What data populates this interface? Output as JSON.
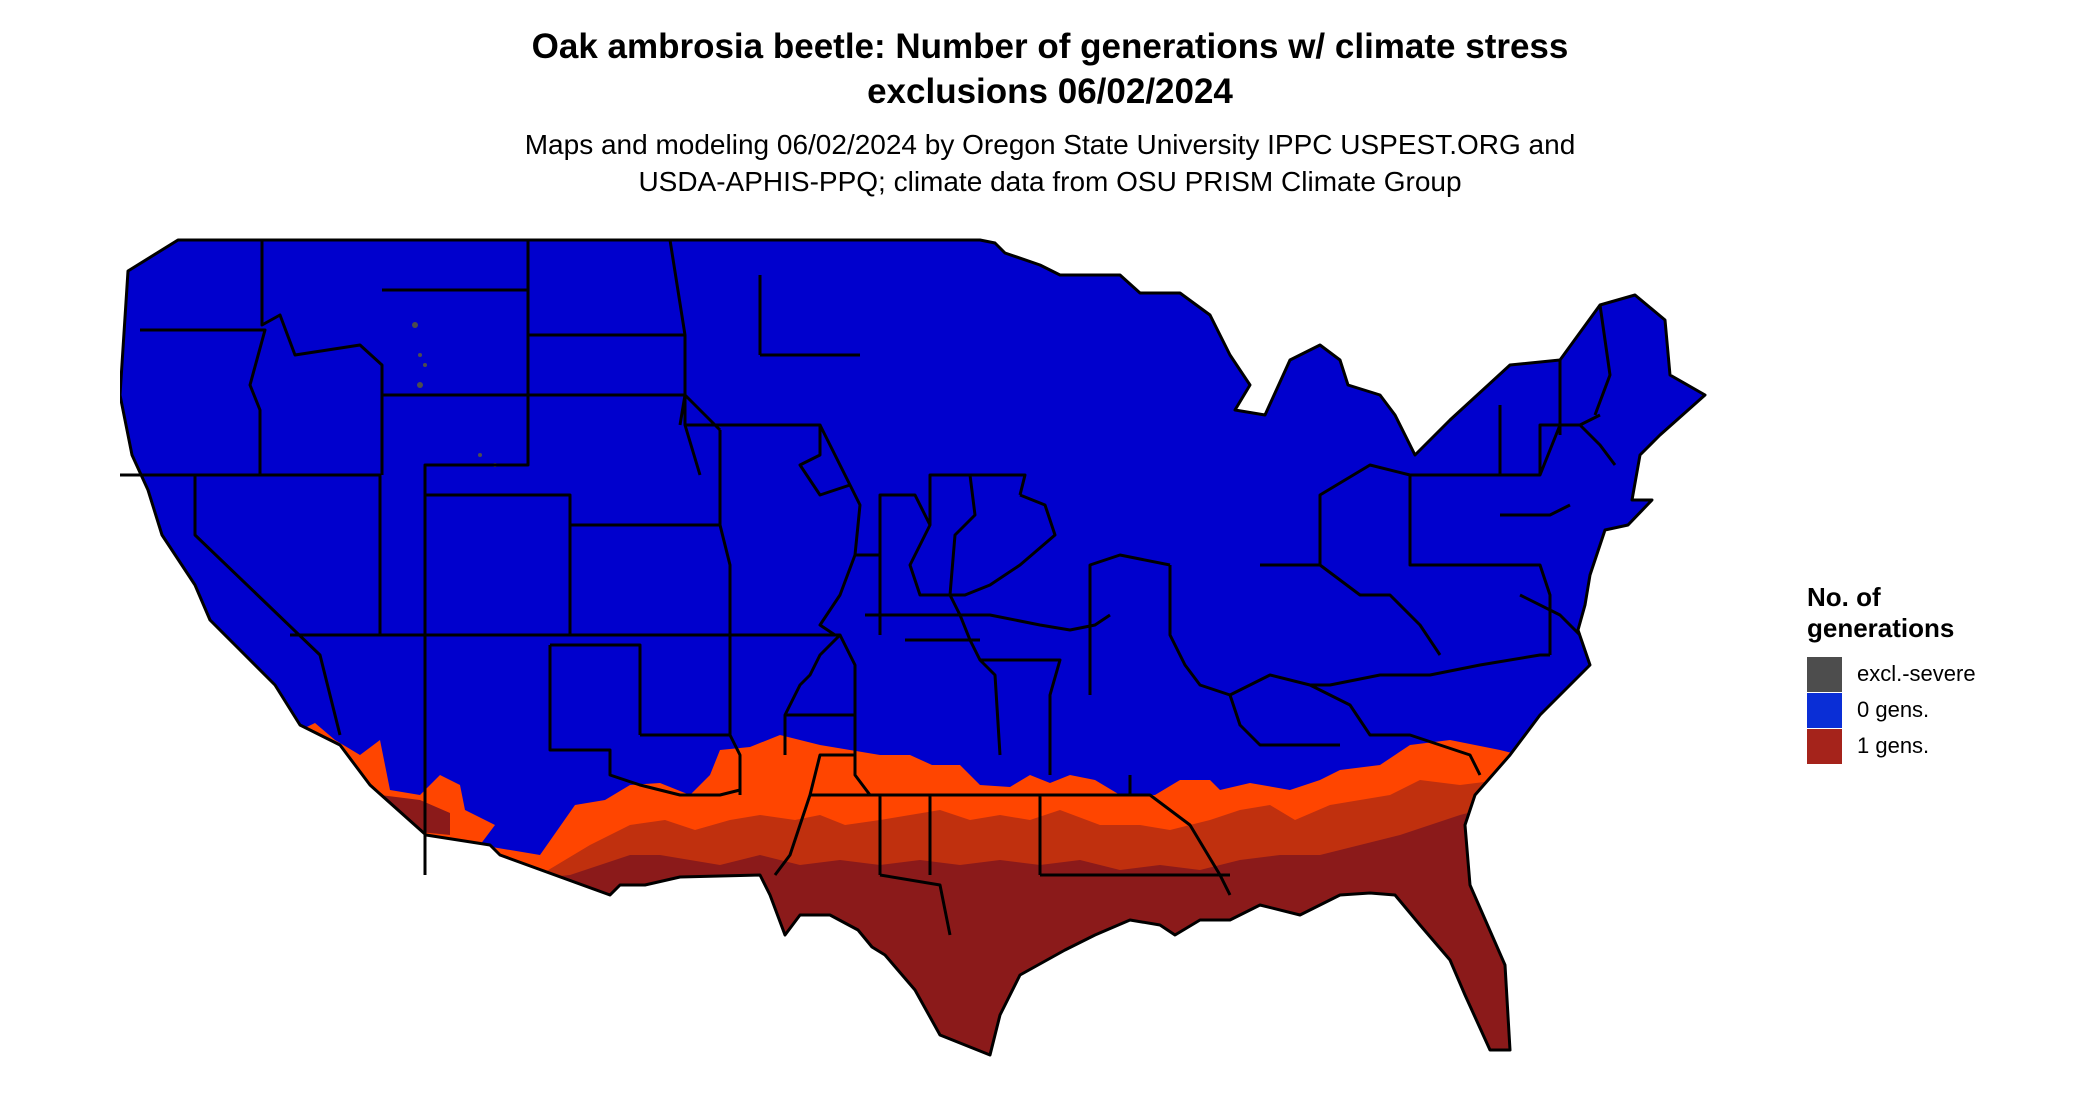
{
  "map": {
    "title_lines": [
      "Oak ambrosia beetle: Number of generations w/ climate stress",
      "exclusions 06/02/2024"
    ],
    "subtitle_lines": [
      "Maps and modeling 06/02/2024 by Oregon State University IPPC USPEST.ORG and",
      "USDA-APHIS-PPQ; climate data from OSU PRISM Climate Group"
    ],
    "region": "Contiguous United States",
    "regions_by_class": {
      "0 gens.": "most of the country (north, west, central)",
      "1 gens.": "southern tier: Florida, Gulf Coast, Texas, southern Arizona/California, Carolinas",
      "excl.-severe": "scattered high-elevation spots in Wyoming and Colorado"
    }
  },
  "legend": {
    "title_lines": [
      "No. of",
      "generations"
    ],
    "items": [
      {
        "label": "excl.-severe",
        "color": "#4d4d4d"
      },
      {
        "label": "0 gens.",
        "color": "#0a2ed6"
      },
      {
        "label": "1 gens.",
        "color": "#a5231b"
      }
    ]
  },
  "colors": {
    "map_blue": "#0000cd",
    "orange_band": "#ff4500",
    "mid_red": "#c0300e",
    "dark_red": "#8b1a1a",
    "boundary": "#000000"
  }
}
